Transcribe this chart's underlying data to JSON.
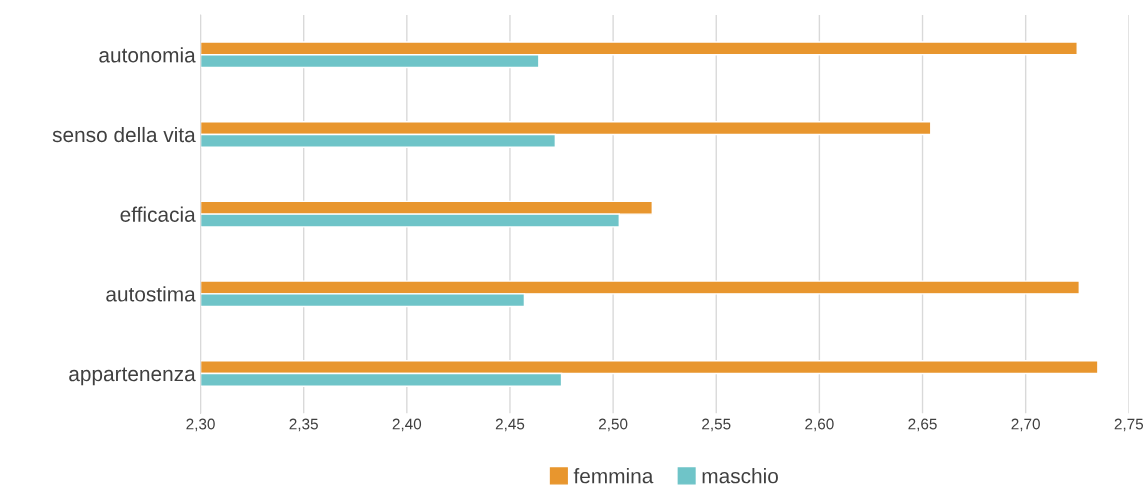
{
  "chart_data": {
    "type": "bar",
    "orientation": "horizontal",
    "categories": [
      "autonomia",
      "senso della vita",
      "efficacia",
      "autostima",
      "appartenenza"
    ],
    "series": [
      {
        "name": "femmina",
        "color": "#e8962e",
        "values": [
          2.725,
          2.654,
          2.519,
          2.726,
          2.735
        ]
      },
      {
        "name": "maschio",
        "color": "#6fc4c8",
        "values": [
          2.464,
          2.472,
          2.503,
          2.457,
          2.475
        ]
      }
    ],
    "xlim": [
      2.3,
      2.75
    ],
    "xticks": [
      {
        "value": 2.3,
        "label": "2,30"
      },
      {
        "value": 2.35,
        "label": "2,35"
      },
      {
        "value": 2.4,
        "label": "2,40"
      },
      {
        "value": 2.45,
        "label": "2,45"
      },
      {
        "value": 2.5,
        "label": "2,50"
      },
      {
        "value": 2.55,
        "label": "2,55"
      },
      {
        "value": 2.6,
        "label": "2,60"
      },
      {
        "value": 2.65,
        "label": "2,65"
      },
      {
        "value": 2.7,
        "label": "2,70"
      },
      {
        "value": 2.75,
        "label": "2,75"
      }
    ],
    "grid": "x",
    "legend": "bottom"
  }
}
